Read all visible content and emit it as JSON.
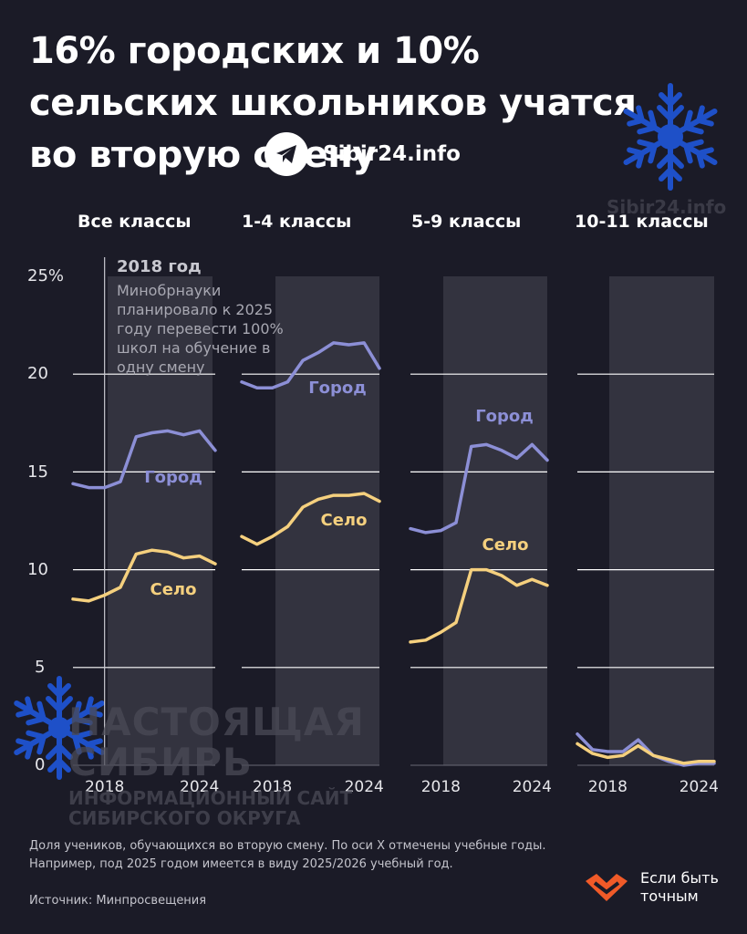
{
  "title": "16% городских и 10% сельских школьников учатся во вторую смену",
  "brand": {
    "name": "Sibir24.info",
    "watermark": "Sibir24.info",
    "icon": "telegram-icon"
  },
  "annotation": {
    "year": "2018 год",
    "text": "Минобрнауки планировало к 2025 году перевести 100% школ на обучение в одну смену"
  },
  "y_tick_labels": [
    "25%",
    "20",
    "15",
    "10",
    "5",
    "0"
  ],
  "x_tick_labels": [
    "2018",
    "2024"
  ],
  "series_labels": {
    "city": "Город",
    "village": "Село"
  },
  "colors": {
    "city": "#8c8fd6",
    "village": "#f5d07e",
    "shade": "#33333f",
    "background": "#1b1b27"
  },
  "watermark": {
    "line1": "НАСТОЯЩАЯ",
    "line2": "СИБИРЬ",
    "line3": "ИНФОРМАЦИОННЫЙ САЙТ",
    "line4": "СИБИРСКОГО ОКРУГА"
  },
  "note": "Доля учеников, обучающихся во вторую смену. По оси Х отмечены учебные годы. Например, под 2025 годом имеется в виду 2025/2026 учебный год.",
  "source": "Источник: Минпросвещения",
  "logo2": {
    "text": "Если быть точным",
    "icon": "heart-chevron-icon"
  },
  "chart_data": [
    {
      "type": "line",
      "title": "Все классы",
      "x": [
        2016,
        2017,
        2018,
        2019,
        2020,
        2021,
        2022,
        2023,
        2024,
        2025
      ],
      "ylim": [
        0,
        25
      ],
      "series": [
        {
          "name": "Город",
          "values": [
            14.4,
            14.2,
            14.2,
            14.5,
            16.8,
            17.0,
            17.1,
            16.9,
            17.1,
            16.1
          ]
        },
        {
          "name": "Село",
          "values": [
            8.5,
            8.4,
            8.7,
            9.1,
            10.8,
            11.0,
            10.9,
            10.6,
            10.7,
            10.3
          ]
        }
      ]
    },
    {
      "type": "line",
      "title": "1-4 классы",
      "x": [
        2016,
        2017,
        2018,
        2019,
        2020,
        2021,
        2022,
        2023,
        2024,
        2025
      ],
      "ylim": [
        0,
        25
      ],
      "series": [
        {
          "name": "Город",
          "values": [
            19.6,
            19.3,
            19.3,
            19.6,
            20.7,
            21.1,
            21.6,
            21.5,
            21.6,
            20.3
          ]
        },
        {
          "name": "Село",
          "values": [
            11.7,
            11.3,
            11.7,
            12.2,
            13.2,
            13.6,
            13.8,
            13.8,
            13.9,
            13.5
          ]
        }
      ]
    },
    {
      "type": "line",
      "title": "5-9 классы",
      "x": [
        2016,
        2017,
        2018,
        2019,
        2020,
        2021,
        2022,
        2023,
        2024,
        2025
      ],
      "ylim": [
        0,
        25
      ],
      "series": [
        {
          "name": "Город",
          "values": [
            12.1,
            11.9,
            12.0,
            12.4,
            16.3,
            16.4,
            16.1,
            15.7,
            16.4,
            15.6
          ]
        },
        {
          "name": "Село",
          "values": [
            6.3,
            6.4,
            6.8,
            7.3,
            10.0,
            10.0,
            9.7,
            9.2,
            9.5,
            9.2
          ]
        }
      ]
    },
    {
      "type": "line",
      "title": "10-11 классы",
      "x": [
        2016,
        2017,
        2018,
        2019,
        2020,
        2021,
        2022,
        2023,
        2024,
        2025
      ],
      "ylim": [
        0,
        25
      ],
      "series": [
        {
          "name": "Город",
          "values": [
            1.6,
            0.8,
            0.7,
            0.7,
            1.3,
            0.5,
            0.2,
            0.0,
            0.1,
            0.1
          ]
        },
        {
          "name": "Село",
          "values": [
            1.1,
            0.6,
            0.4,
            0.5,
            1.0,
            0.5,
            0.3,
            0.1,
            0.2,
            0.2
          ]
        }
      ]
    }
  ]
}
